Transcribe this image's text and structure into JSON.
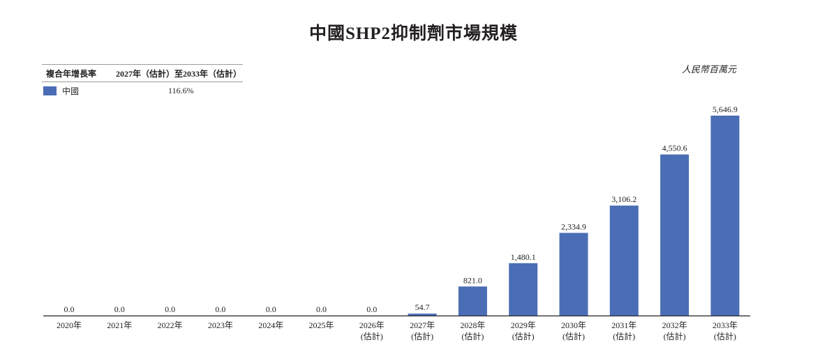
{
  "title": "中國SHP2抑制劑市場規模",
  "unit": "人民幣百萬元",
  "cagr_table": {
    "header_label": "複合年增長率",
    "header_period": "2027年（估計）至2033年（估計）",
    "rows": [
      {
        "name": "中國",
        "value": "116.6%"
      }
    ]
  },
  "colors": {
    "bar": "#4a6db5",
    "axis": "#231f20"
  },
  "chart_data": {
    "type": "bar",
    "title": "中國SHP2抑制劑市場規模",
    "ylabel": "人民幣百萬元",
    "categories": [
      "2020年",
      "2021年",
      "2022年",
      "2023年",
      "2024年",
      "2025年",
      "2026年",
      "2027年",
      "2028年",
      "2029年",
      "2030年",
      "2031年",
      "2032年",
      "2033年"
    ],
    "category_notes": [
      "",
      "",
      "",
      "",
      "",
      "",
      "(估計)",
      "(估計)",
      "(估計)",
      "(估計)",
      "(估計)",
      "(估計)",
      "(估計)",
      "(估計)"
    ],
    "values": [
      0.0,
      0.0,
      0.0,
      0.0,
      0.0,
      0.0,
      0.0,
      54.7,
      821.0,
      1480.1,
      2334.9,
      3106.2,
      4550.6,
      5646.9
    ],
    "labels": [
      "0.0",
      "0.0",
      "0.0",
      "0.0",
      "0.0",
      "0.0",
      "0.0",
      "54.7",
      "821.0",
      "1,480.1",
      "2,334.9",
      "3,106.2",
      "4,550.6",
      "5,646.9"
    ],
    "series": [
      {
        "name": "中國",
        "values": [
          0.0,
          0.0,
          0.0,
          0.0,
          0.0,
          0.0,
          0.0,
          54.7,
          821.0,
          1480.1,
          2334.9,
          3106.2,
          4550.6,
          5646.9
        ]
      }
    ],
    "ylim": [
      0,
      5646.9
    ],
    "grid": false,
    "legend": "top-left"
  }
}
